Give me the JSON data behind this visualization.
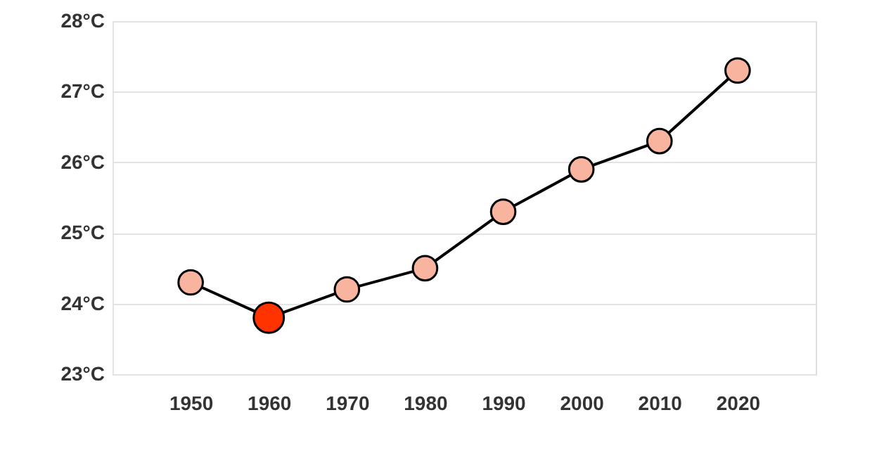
{
  "chart_data": {
    "type": "line",
    "categories": [
      "1950",
      "1960",
      "1970",
      "1980",
      "1990",
      "2000",
      "2010",
      "2020"
    ],
    "series": [
      {
        "color": "#000000",
        "colors": [
          "#f9b4a0",
          "#ff3300",
          "#f9b4a0",
          "#f9b4a0",
          "#f9b4a0",
          "#f9b4a0",
          "#f9b4a0",
          "#f9b4a0"
        ],
        "values": [
          24.3,
          23.8,
          24.2,
          24.5,
          25.3,
          25.9,
          26.3,
          27.3
        ]
      }
    ],
    "ylim": [
      23,
      28
    ],
    "yticks": [
      {
        "value": 23,
        "label": "23°C"
      },
      {
        "value": 24,
        "label": "24°C"
      },
      {
        "value": 25,
        "label": "25°C"
      },
      {
        "value": 26,
        "label": "26°C"
      },
      {
        "value": 27,
        "label": "27°C"
      },
      {
        "value": 28,
        "label": "28°C"
      }
    ],
    "grid": "y",
    "marker": "circle",
    "line_style": "solid"
  }
}
